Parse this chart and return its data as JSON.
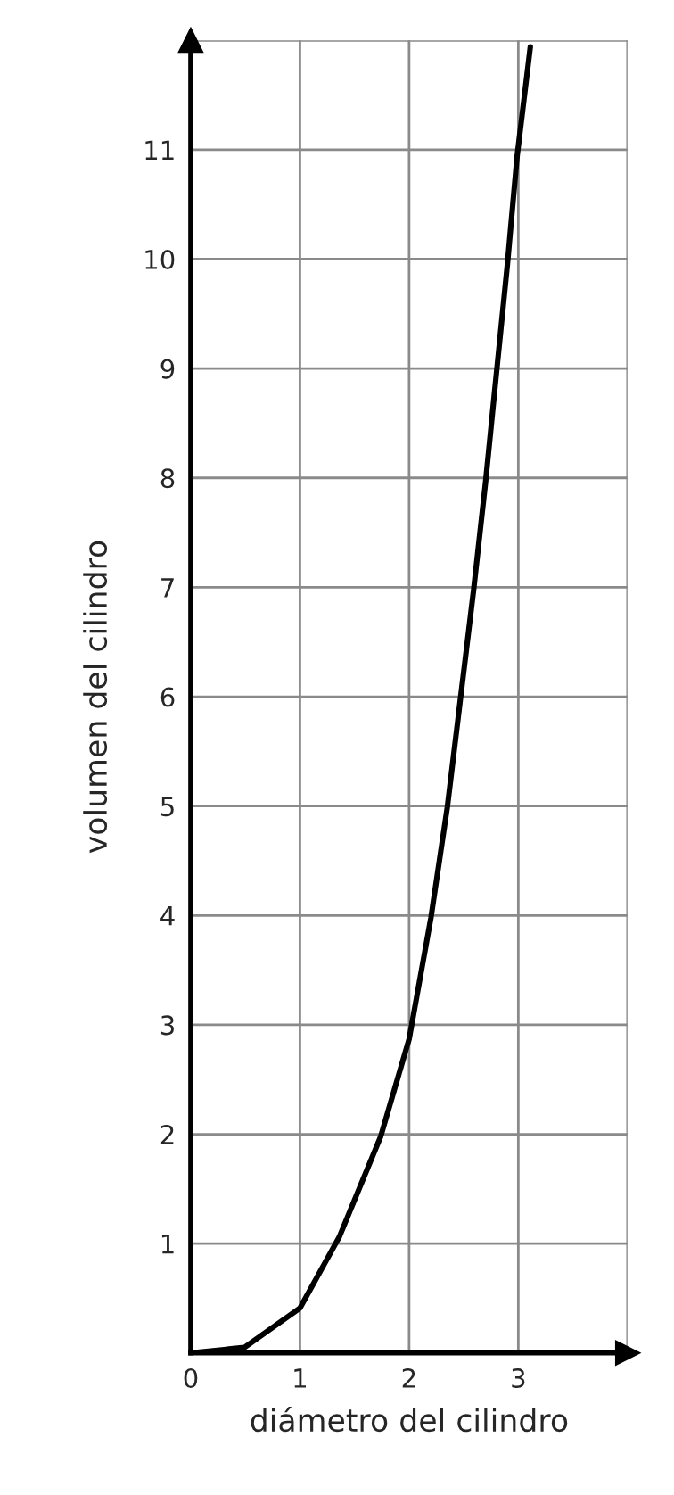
{
  "chart_data": {
    "type": "line",
    "xlabel": "diámetro del cilindro",
    "ylabel": "volumen del cilindro",
    "xlim": [
      0,
      4
    ],
    "ylim": [
      0,
      12
    ],
    "xticks": [
      0,
      1,
      2,
      3,
      {
        "value": 4,
        "label": null
      }
    ],
    "yticks": [
      1,
      2,
      3,
      4,
      5,
      6,
      7,
      8,
      9,
      10,
      11,
      {
        "value": 12,
        "label": null
      }
    ],
    "grid": true,
    "marker": "none",
    "line_style": "solid",
    "series": [
      {
        "color": "#000000",
        "x": [
          0,
          0.49,
          1.0,
          1.36,
          1.74,
          2.0,
          2.2,
          2.35,
          2.47,
          2.59,
          2.7,
          2.8,
          2.9,
          2.99,
          3.11
        ],
        "values": [
          0,
          0.05,
          0.41,
          1.06,
          1.98,
          2.87,
          3.98,
          4.99,
          5.98,
          6.97,
          7.96,
          8.96,
          9.95,
          10.95,
          11.94
        ]
      }
    ]
  }
}
